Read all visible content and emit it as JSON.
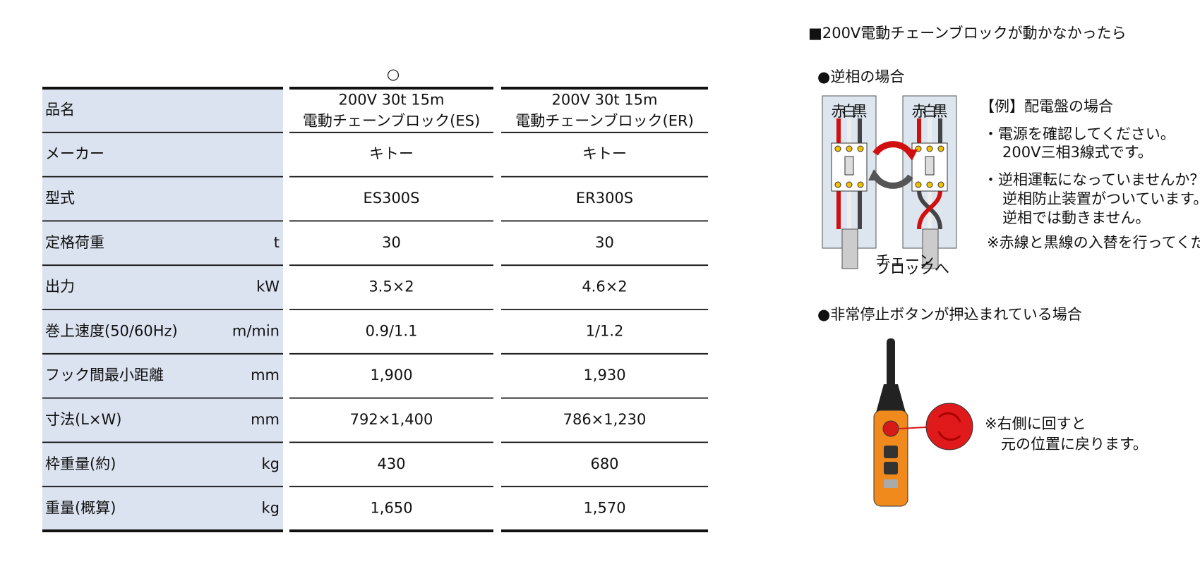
{
  "table": {
    "recommend_mark": "○",
    "header": {
      "label": "品名",
      "products": [
        {
          "line1": "200V 30t 15m",
          "line2": "電動チェーンブロック(ES)"
        },
        {
          "line1": "200V 30t 15m",
          "line2": "電動チェーンブロック(ER)"
        }
      ]
    },
    "rows": [
      {
        "label": "メーカー",
        "values": [
          "キトー",
          "キトー"
        ]
      },
      {
        "label": "型式",
        "values": [
          "ES300S",
          "ER300S"
        ]
      },
      {
        "label": "定格荷重",
        "unit": "t",
        "values": [
          "30",
          "30"
        ]
      },
      {
        "label": "出力",
        "unit": "kW",
        "values": [
          "3.5×2",
          "4.6×2"
        ]
      },
      {
        "label": "巻上速度(50/60Hz)",
        "unit": "m/min",
        "values": [
          "0.9/1.1",
          "1/1.2"
        ]
      },
      {
        "label": "フック間最小距離",
        "unit": "mm",
        "values": [
          "1,900",
          "1,930"
        ]
      },
      {
        "label": "寸法(L×W)",
        "unit": "mm",
        "values": [
          "792×1,400",
          "786×1,230"
        ]
      },
      {
        "label": "枠重量(約)",
        "unit": "kg",
        "values": [
          "430",
          "680"
        ]
      },
      {
        "label": "重量(概算)",
        "unit": "kg",
        "values": [
          "1,650",
          "1,570"
        ]
      }
    ]
  },
  "panel": {
    "title": "■200V電動チェーンブロックが動かなかったら",
    "reverse_phase": {
      "heading": "●逆相の場合",
      "wire_labels": [
        "赤",
        "白",
        "黒"
      ],
      "cable_label": [
        "チェーン",
        "ブロックへ"
      ],
      "example": "【例】配電盤の場合",
      "notes": [
        "・電源を確認してください。",
        "200V三相3線式です。",
        "・逆相運転になっていませんか？",
        "逆相防止装置がついています。",
        "逆相では動きません。",
        "※赤線と黒線の入替を行ってください。"
      ]
    },
    "emergency": {
      "heading": "●非常停止ボタンが押込まれている場合",
      "notes": [
        "※右側に回すと",
        "元の位置に戻ります。"
      ]
    }
  }
}
